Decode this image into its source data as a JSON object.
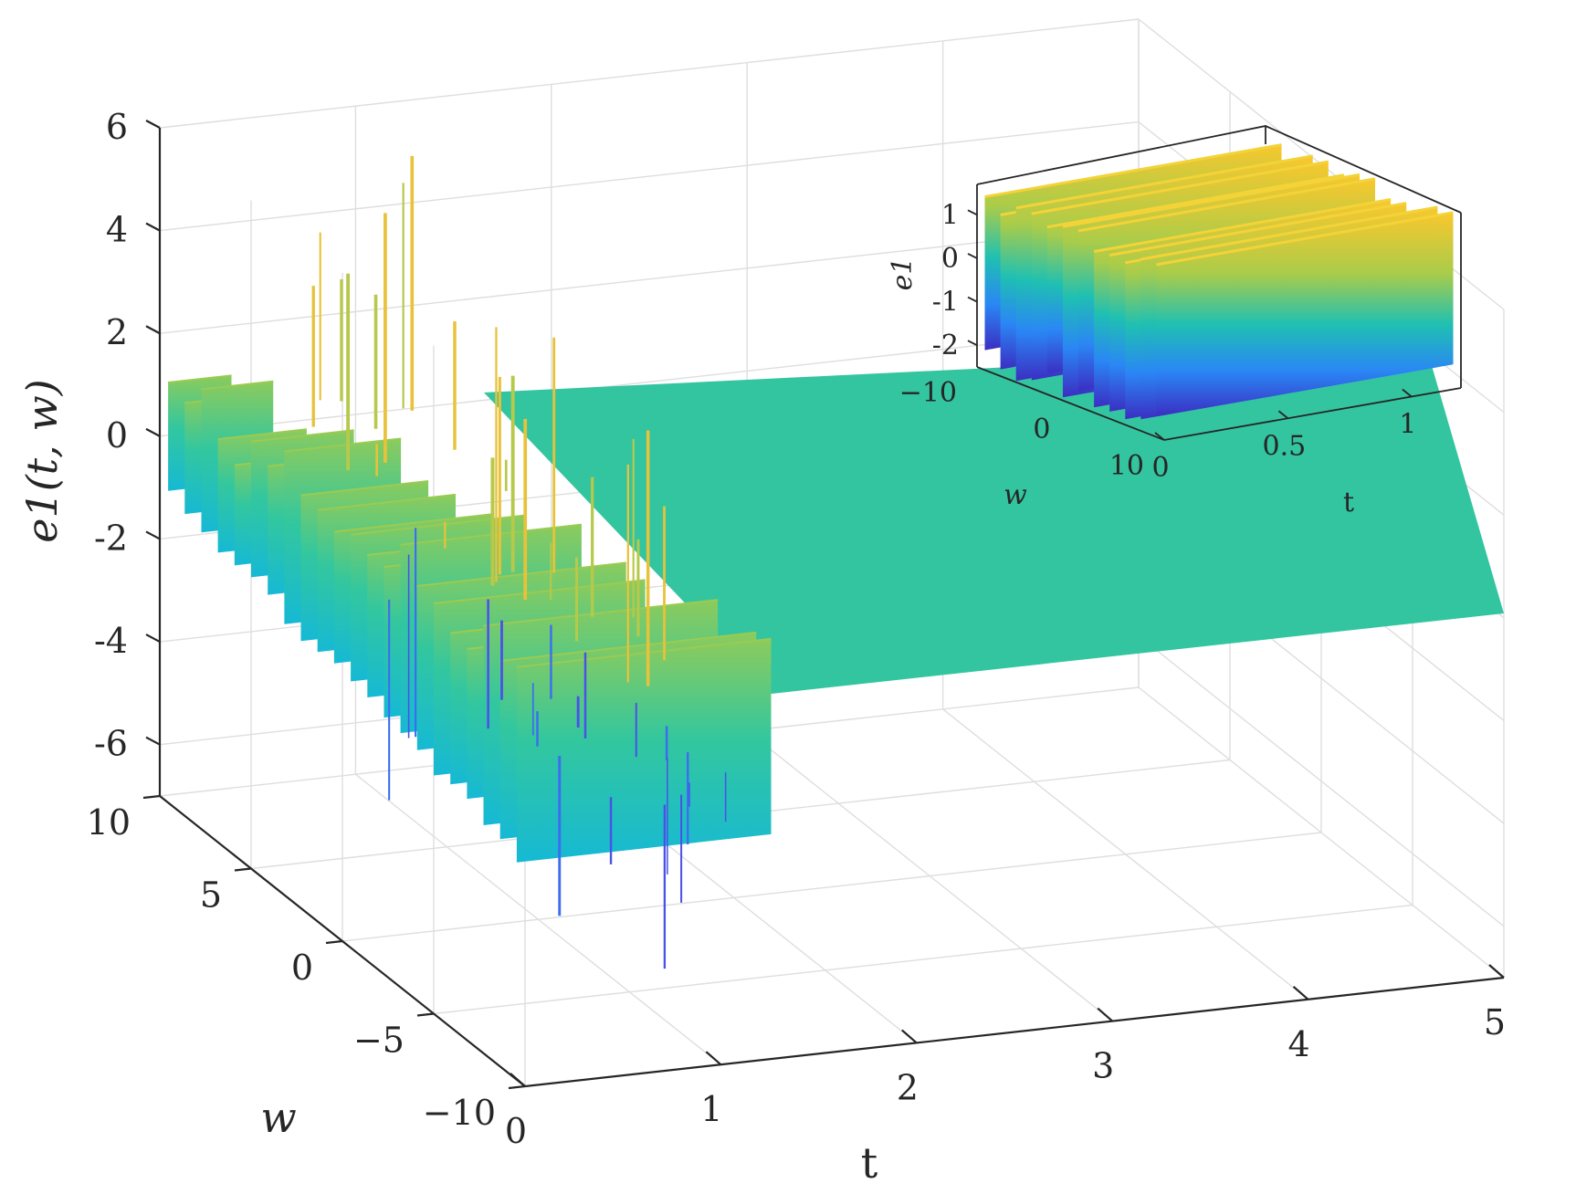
{
  "chart_data": [
    {
      "type": "surface",
      "xlabel": "t",
      "ylabel": "w",
      "zlabel": "e1(t, w)",
      "xlim": [
        0,
        5
      ],
      "ylim": [
        -10,
        10
      ],
      "zlim": [
        -7,
        6
      ],
      "x_ticks": [
        "0",
        "1",
        "2",
        "3",
        "4",
        "5"
      ],
      "y_ticks": [
        "−10",
        "−5",
        "0",
        "5",
        "10"
      ],
      "z_ticks": [
        "6",
        "4",
        "2",
        "0",
        "-2",
        "-4",
        "-6"
      ],
      "colormap": [
        "#3e26a8",
        "#2e87f7",
        "#16c4bf",
        "#33c79e",
        "#8ccb5c",
        "#f4c23a",
        "#f9fb0e"
      ],
      "steady_value": 0,
      "transient": {
        "t_range": [
          0,
          1.3
        ],
        "upper_level_range": [
          0.5,
          1.7
        ],
        "lower_level_range": [
          -2.6,
          -0.9
        ],
        "max_spike": 5.5,
        "min_spike": -6.3
      },
      "grid": true
    },
    {
      "type": "surface",
      "role": "inset",
      "xlabel": "t",
      "ylabel": "w",
      "zlabel": "e1",
      "xlim": [
        0,
        1.2
      ],
      "ylim": [
        -10,
        10
      ],
      "zlim": [
        -2.5,
        1.7
      ],
      "x_ticks": [
        "0",
        "0.5",
        "1"
      ],
      "y_ticks": [
        "−10",
        "0",
        "10"
      ],
      "z_ticks": [
        "1",
        "0",
        "-1",
        "-2"
      ],
      "upper_level_range": [
        1.2,
        1.7
      ],
      "lower_level_range": [
        -2.5,
        -2.0
      ]
    }
  ]
}
